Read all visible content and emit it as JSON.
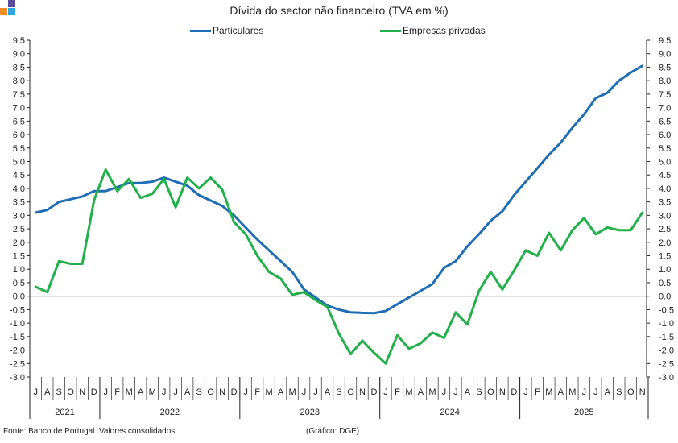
{
  "header": {
    "title": "Dívida do sector não financeiro (TVA em %)"
  },
  "logo": {
    "colors": [
      "#f28c28",
      "#5b4aa0",
      "#2ea7e0",
      "#f6c000"
    ]
  },
  "footer": {
    "source": "Fonte: Banco de Portugal. Valores consolidados",
    "credit": "(Gráfico: DGE)"
  },
  "chart_data": {
    "type": "line",
    "title": "Dívida do sector não financeiro (TVA em %)",
    "xlabel": "",
    "ylabel": "",
    "ylim": [
      -3.0,
      9.5
    ],
    "ystep": 0.5,
    "y2lim": [
      -3.0,
      9.5
    ],
    "grid": false,
    "legend_position": "top-center",
    "categories": [
      "J",
      "A",
      "S",
      "O",
      "N",
      "D",
      "J",
      "F",
      "M",
      "A",
      "M",
      "J",
      "J",
      "A",
      "S",
      "O",
      "N",
      "D",
      "J",
      "F",
      "M",
      "A",
      "M",
      "J",
      "J",
      "A",
      "S",
      "O",
      "N",
      "D",
      "J",
      "F",
      "M",
      "A",
      "M",
      "J",
      "J",
      "A",
      "S",
      "O",
      "N",
      "D",
      "J",
      "F",
      "M",
      "A",
      "M",
      "J",
      "J",
      "A",
      "S",
      "O",
      "N"
    ],
    "years": [
      {
        "label": "2021",
        "start": 0,
        "end": 5
      },
      {
        "label": "2022",
        "start": 6,
        "end": 17
      },
      {
        "label": "2023",
        "start": 18,
        "end": 29
      },
      {
        "label": "2024",
        "start": 30,
        "end": 41
      },
      {
        "label": "2025",
        "start": 42,
        "end": 52
      }
    ],
    "series": [
      {
        "name": "Particulares",
        "color": "#1f6db5",
        "values": [
          3.1,
          3.2,
          3.5,
          3.6,
          3.7,
          3.9,
          3.9,
          4.05,
          4.2,
          4.2,
          4.25,
          4.4,
          4.25,
          4.1,
          3.75,
          3.55,
          3.35,
          3.0,
          2.55,
          2.1,
          1.7,
          1.3,
          0.9,
          0.25,
          -0.05,
          -0.35,
          -0.5,
          -0.6,
          -0.62,
          -0.63,
          -0.55,
          -0.3,
          -0.05,
          0.2,
          0.45,
          1.05,
          1.3,
          1.85,
          2.3,
          2.8,
          3.15,
          3.75,
          4.25,
          4.75,
          5.25,
          5.7,
          6.25,
          6.75,
          7.35,
          7.55,
          8.0,
          8.3,
          8.55
        ]
      },
      {
        "name": "Empresas privadas",
        "color": "#22b04b",
        "values": [
          0.35,
          0.15,
          1.3,
          1.2,
          1.2,
          3.55,
          4.7,
          3.9,
          4.35,
          3.65,
          3.8,
          4.35,
          3.3,
          4.4,
          4.0,
          4.4,
          3.95,
          2.75,
          2.3,
          1.5,
          0.9,
          0.65,
          0.05,
          0.15,
          -0.15,
          -0.4,
          -1.4,
          -2.15,
          -1.65,
          -2.1,
          -2.5,
          -1.45,
          -1.95,
          -1.75,
          -1.35,
          -1.55,
          -0.6,
          -1.05,
          0.2,
          0.9,
          0.25,
          0.95,
          1.7,
          1.5,
          2.35,
          1.7,
          2.45,
          2.9,
          2.3,
          2.55,
          2.45,
          2.45,
          3.1
        ]
      }
    ]
  }
}
